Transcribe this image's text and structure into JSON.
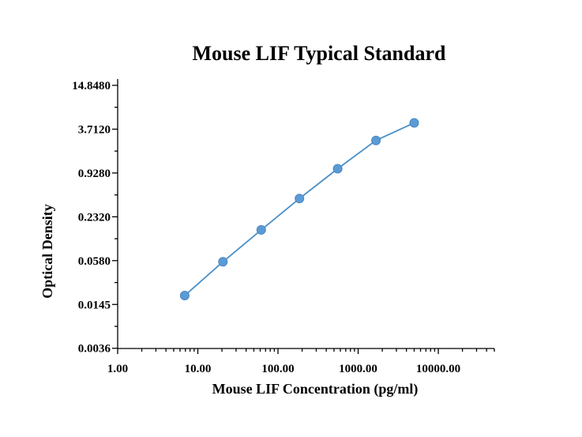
{
  "chart_data": {
    "type": "line",
    "title": "Mouse LIF Typical Standard",
    "xlabel": "Mouse LIF Concentration (pg/ml)",
    "ylabel": "Optical Density",
    "x_scale": "log10",
    "y_scale": "log2",
    "xlim": [
      1,
      50000
    ],
    "ylim": [
      0.0036,
      14.848
    ],
    "x_ticks": [
      "1.00",
      "10.00",
      "100.00",
      "1000.00",
      "10000.00"
    ],
    "x_tick_values": [
      1,
      10,
      100,
      1000,
      10000
    ],
    "y_ticks": [
      "0.0036",
      "0.0145",
      "0.0580",
      "0.2320",
      "0.9280",
      "3.7120",
      "14.8480"
    ],
    "y_tick_values": [
      0.003625,
      0.0145,
      0.058,
      0.232,
      0.928,
      3.712,
      14.848
    ],
    "grid": false,
    "series": [
      {
        "x": [
          6.86,
          20.58,
          61.73,
          185.19,
          555.56,
          1666.67,
          5000
        ],
        "y": [
          0.0192,
          0.0559,
          0.1535,
          0.414,
          1.0614,
          2.6,
          4.53
        ]
      }
    ]
  }
}
